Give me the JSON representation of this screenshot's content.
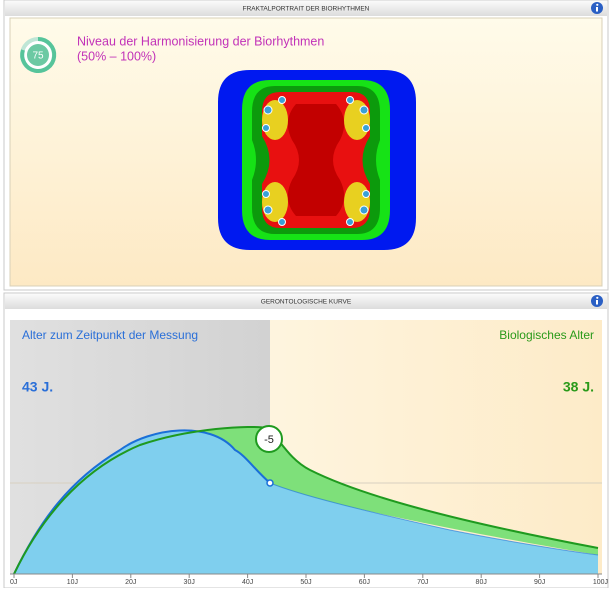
{
  "panels": [
    {
      "header": "FRAKTALPORTRAIT DER BIORHYTHMEN",
      "badge": "75",
      "title": "Niveau der Harmonisierung der Biorhythmen",
      "subtitle": "(50% – 100%)"
    },
    {
      "header": "GERONTOLOGISCHE KURVE",
      "left_label": "Alter zum Zeitpunkt der Messung",
      "right_label": "Biologisches Alter",
      "left_value": "43 J.",
      "right_value": "38 J.",
      "difference": "-5",
      "xlim": [
        0,
        100
      ],
      "xticks": [
        {
          "value": 0,
          "label": "0J"
        },
        {
          "value": 10,
          "label": "10J"
        },
        {
          "value": 20,
          "label": "20J"
        },
        {
          "value": 30,
          "label": "30J"
        },
        {
          "value": 40,
          "label": "40J"
        },
        {
          "value": 50,
          "label": "50J"
        },
        {
          "value": 60,
          "label": "60J"
        },
        {
          "value": 70,
          "label": "70J"
        },
        {
          "value": 80,
          "label": "80J"
        },
        {
          "value": 90,
          "label": "90J"
        },
        {
          "value": 100,
          "label": "100J"
        }
      ]
    }
  ]
}
